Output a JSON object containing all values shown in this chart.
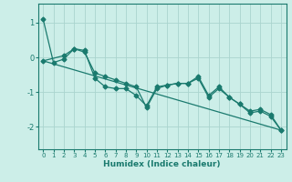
{
  "xlabel": "Humidex (Indice chaleur)",
  "bg_color": "#cceee8",
  "grid_color": "#aad4ce",
  "line_color": "#1a7a6e",
  "xlim": [
    -0.5,
    23.5
  ],
  "ylim": [
    -2.65,
    1.55
  ],
  "yticks": [
    -2,
    -1,
    0,
    1
  ],
  "xticks": [
    0,
    1,
    2,
    3,
    4,
    5,
    6,
    7,
    8,
    9,
    10,
    11,
    12,
    13,
    14,
    15,
    16,
    17,
    18,
    19,
    20,
    21,
    22,
    23
  ],
  "line1_x": [
    0,
    1,
    2,
    3,
    4,
    5,
    6,
    7,
    8,
    9,
    10,
    11,
    12,
    13,
    14,
    15,
    16,
    17,
    18,
    19,
    20,
    21,
    22,
    23
  ],
  "line1_y": [
    1.1,
    -0.15,
    -0.05,
    0.25,
    0.2,
    -0.6,
    -0.85,
    -0.9,
    -0.9,
    -1.1,
    -1.4,
    -0.85,
    -0.8,
    -0.75,
    -0.75,
    -0.55,
    -1.1,
    -0.85,
    -1.15,
    -1.35,
    -1.6,
    -1.55,
    -1.7,
    -2.1
  ],
  "line2_x": [
    0,
    2,
    3,
    4,
    5,
    6,
    7,
    8,
    9,
    10,
    11,
    12,
    13,
    14,
    15,
    16,
    17,
    18,
    19,
    20,
    21,
    22,
    23
  ],
  "line2_y": [
    -0.1,
    0.05,
    0.25,
    0.15,
    -0.45,
    -0.55,
    -0.65,
    -0.75,
    -0.85,
    -1.45,
    -0.9,
    -0.8,
    -0.75,
    -0.75,
    -0.6,
    -1.15,
    -0.9,
    -1.15,
    -1.35,
    -1.55,
    -1.5,
    -1.65,
    -2.1
  ],
  "line3_x": [
    0,
    23
  ],
  "line3_y": [
    -0.1,
    -2.1
  ],
  "marker_size": 2.5,
  "line_width": 0.9
}
